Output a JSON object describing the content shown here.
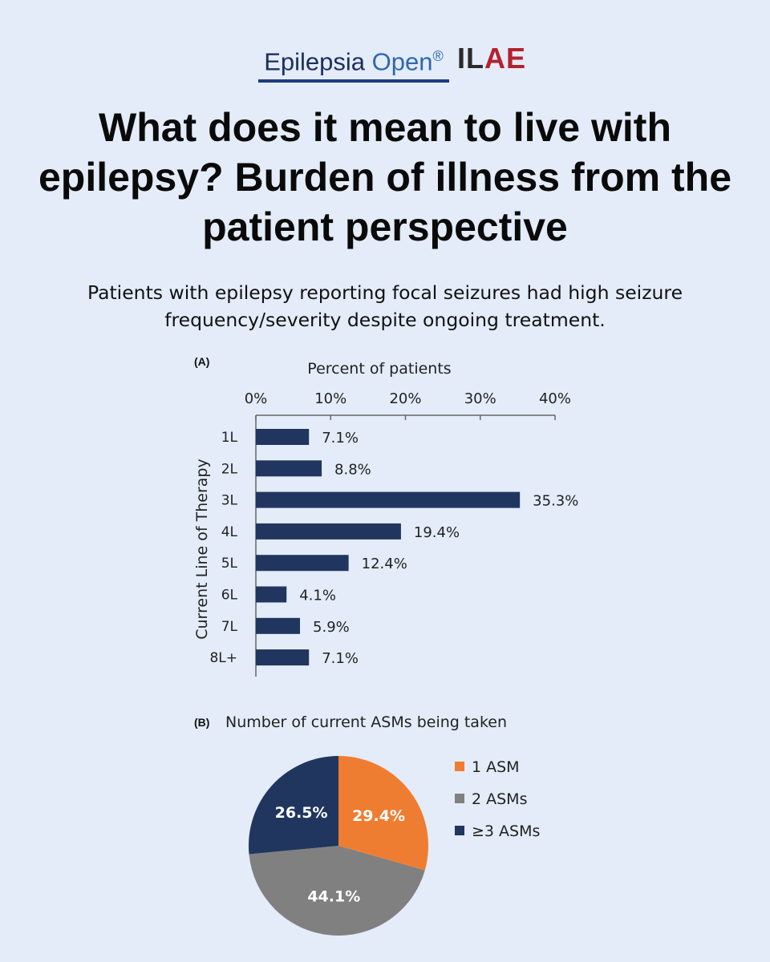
{
  "header": {
    "journal_word1": "Epilepsia",
    "journal_word2": "Open",
    "journal_mark": "®",
    "society_prefix": "IL",
    "society_suffix": "AE",
    "colors": {
      "journal_dark": "#1c2f5e",
      "journal_blue": "#2f66b0",
      "society_red": "#b5202e"
    }
  },
  "title": "What does it mean to live with epilepsy? Burden of illness from the patient perspective",
  "subtitle": "Patients with epilepsy reporting focal seizures had high seizure frequency/severity despite ongoing treatment.",
  "chart_data": [
    {
      "type": "bar",
      "orientation": "horizontal",
      "panel": "(A)",
      "xlabel": "Percent of patients",
      "ylabel": "Current Line of Therapy",
      "categories": [
        "1L",
        "2L",
        "3L",
        "4L",
        "5L",
        "6L",
        "7L",
        "8L+"
      ],
      "values": [
        7.1,
        8.8,
        35.3,
        19.4,
        12.4,
        4.1,
        5.9,
        7.1
      ],
      "value_labels": [
        "7.1%",
        "8.8%",
        "35.3%",
        "19.4%",
        "12.4%",
        "4.1%",
        "5.9%",
        "7.1%"
      ],
      "xlim": [
        0,
        40
      ],
      "xticks": [
        0,
        10,
        20,
        30,
        40
      ],
      "xtick_labels": [
        "0%",
        "10%",
        "20%",
        "30%",
        "40%"
      ],
      "x_axis_position": "top",
      "bar_color": "#20365f",
      "grid": false
    },
    {
      "type": "pie",
      "panel": "(B)",
      "title": "Number of current ASMs being taken",
      "slices": [
        {
          "name": "1 ASM",
          "value": 29.4,
          "label": "29.4%",
          "color": "#ef7d31"
        },
        {
          "name": "2 ASMs",
          "value": 44.1,
          "label": "44.1%",
          "color": "#808080"
        },
        {
          "name": "≥3 ASMs",
          "value": 26.5,
          "label": "26.5%",
          "color": "#20365f"
        }
      ],
      "start": "12 o'clock, clockwise",
      "legend_position": "right"
    }
  ]
}
